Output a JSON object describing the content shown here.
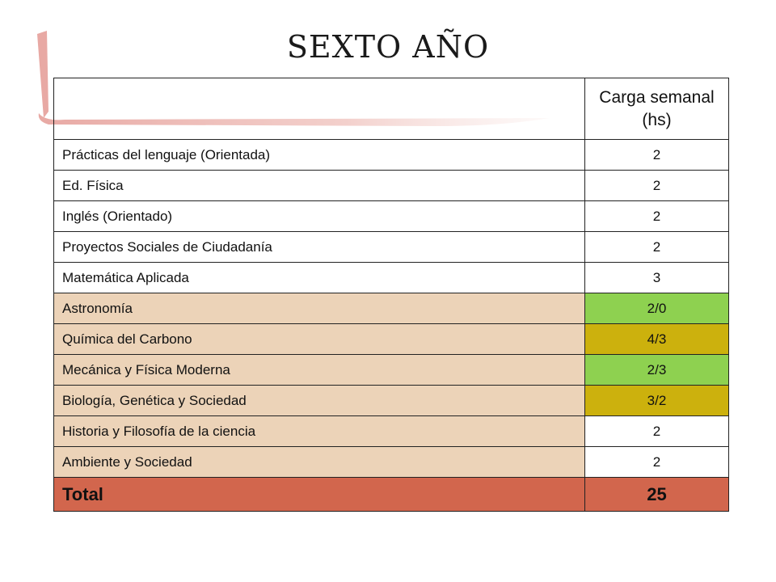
{
  "title": "SEXTO AÑO",
  "table": {
    "header": {
      "subject": "",
      "hours": "Carga semanal (hs)"
    },
    "rows": [
      {
        "subject": "Prácticas del lenguaje (Orientada)",
        "hours": "2",
        "subject_bg": "#ffffff",
        "hours_bg": "#ffffff"
      },
      {
        "subject": "Ed. Física",
        "hours": "2",
        "subject_bg": "#ffffff",
        "hours_bg": "#ffffff"
      },
      {
        "subject": "Inglés (Orientado)",
        "hours": "2",
        "subject_bg": "#ffffff",
        "hours_bg": "#ffffff"
      },
      {
        "subject": "Proyectos Sociales de Ciudadanía",
        "hours": "2",
        "subject_bg": "#ffffff",
        "hours_bg": "#ffffff"
      },
      {
        "subject": "Matemática  Aplicada",
        "hours": "3",
        "subject_bg": "#ffffff",
        "hours_bg": "#ffffff"
      },
      {
        "subject": "Astronomía",
        "hours": "2/0",
        "subject_bg": "#ecd3b8",
        "hours_bg": "#8ed150"
      },
      {
        "subject": "Química del Carbono",
        "hours": "4/3",
        "subject_bg": "#ecd3b8",
        "hours_bg": "#ccb10d"
      },
      {
        "subject": "Mecánica y Física Moderna",
        "hours": "2/3",
        "subject_bg": "#ecd3b8",
        "hours_bg": "#8ed150"
      },
      {
        "subject": "Biología, Genética y Sociedad",
        "hours": "3/2",
        "subject_bg": "#ecd3b8",
        "hours_bg": "#ccb10d"
      },
      {
        "subject": "Historia y Filosofía de la ciencia",
        "hours": "2",
        "subject_bg": "#ecd3b8",
        "hours_bg": "#ffffff"
      },
      {
        "subject": "Ambiente y Sociedad",
        "hours": "2",
        "subject_bg": "#ecd3b8",
        "hours_bg": "#ffffff"
      }
    ],
    "total": {
      "subject": "Total",
      "hours": "25"
    }
  },
  "colors": {
    "accent_bracket": "#e8a9a4",
    "total_bg": "#d2664d"
  }
}
